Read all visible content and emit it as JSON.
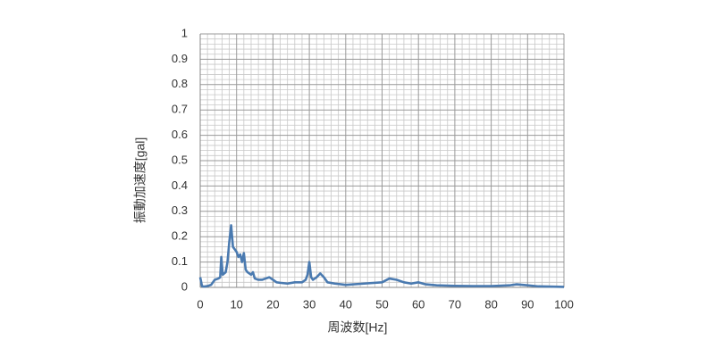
{
  "chart_data": {
    "type": "line",
    "x_label": "周波数[Hz]",
    "y_label": "振動加速度[gal]",
    "xlim": [
      0,
      100
    ],
    "ylim": [
      0,
      1
    ],
    "xticks": [
      0,
      10,
      20,
      30,
      40,
      50,
      60,
      70,
      80,
      90,
      100
    ],
    "yticks": [
      0,
      0.1,
      0.2,
      0.3,
      0.4,
      0.5,
      0.6,
      0.7,
      0.8,
      0.9,
      1
    ],
    "grid": true,
    "minor_grid": true,
    "series": [
      {
        "color": "#4a7ab0",
        "x": [
          0,
          0.5,
          1,
          2,
          3,
          4,
          5,
          5.5,
          5.8,
          6.2,
          7,
          7.5,
          8,
          8.5,
          9,
          9.5,
          10,
          10.5,
          11,
          11.5,
          12,
          12.5,
          13,
          14,
          14.5,
          15,
          16,
          17,
          18,
          19,
          20,
          21,
          22,
          24,
          26,
          28,
          29,
          29.5,
          30,
          30.5,
          31,
          32,
          33,
          34,
          35,
          37,
          40,
          45,
          50,
          52,
          54,
          56,
          58,
          60,
          62,
          65,
          70,
          75,
          80,
          85,
          87,
          90,
          93,
          100
        ],
        "values": [
          0.04,
          0.005,
          0.003,
          0.005,
          0.01,
          0.03,
          0.035,
          0.04,
          0.12,
          0.05,
          0.06,
          0.1,
          0.18,
          0.245,
          0.16,
          0.15,
          0.14,
          0.12,
          0.13,
          0.1,
          0.135,
          0.07,
          0.06,
          0.05,
          0.06,
          0.035,
          0.03,
          0.03,
          0.035,
          0.04,
          0.03,
          0.02,
          0.018,
          0.015,
          0.02,
          0.02,
          0.03,
          0.05,
          0.1,
          0.04,
          0.03,
          0.04,
          0.055,
          0.04,
          0.02,
          0.015,
          0.01,
          0.015,
          0.02,
          0.035,
          0.03,
          0.02,
          0.015,
          0.02,
          0.012,
          0.008,
          0.006,
          0.005,
          0.005,
          0.008,
          0.012,
          0.008,
          0.004,
          0.002
        ]
      }
    ]
  }
}
